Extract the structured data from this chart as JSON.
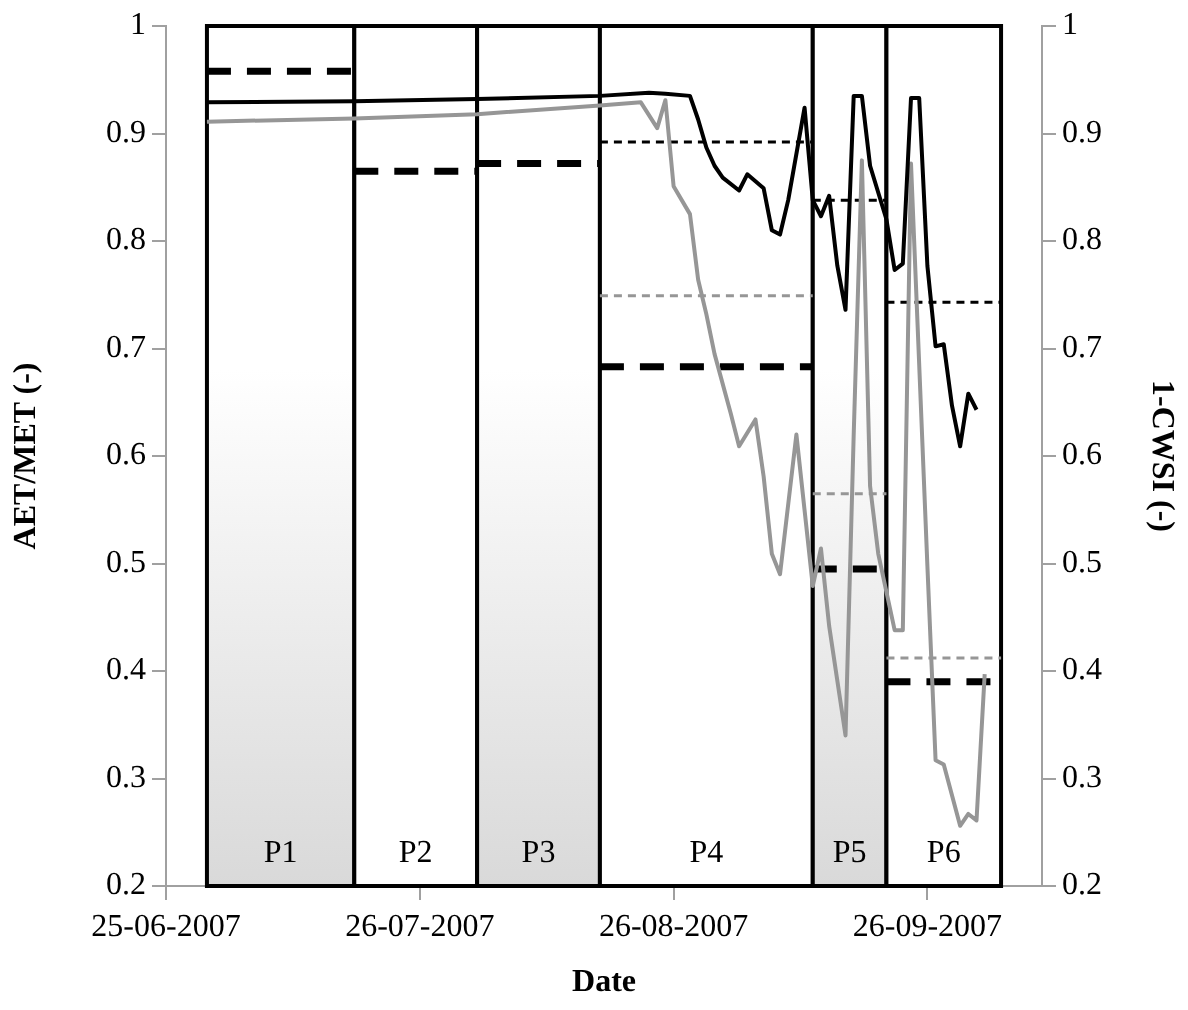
{
  "chart_data": {
    "type": "line",
    "xlabel": "Date",
    "ylabel": "AET/MET (-)",
    "y2label": "1-CWSI (-)",
    "xlim": [
      "2007-06-25",
      "2007-10-10"
    ],
    "xticks": [
      {
        "value": "2007-06-25",
        "label": "25-06-2007"
      },
      {
        "value": "2007-07-26",
        "label": "26-07-2007"
      },
      {
        "value": "2007-08-26",
        "label": "26-08-2007"
      },
      {
        "value": "2007-09-26",
        "label": "26-09-2007"
      }
    ],
    "ylim": [
      0.2,
      1
    ],
    "yticks": [
      0.2,
      0.3,
      0.4,
      0.5,
      0.6,
      0.7,
      0.8,
      0.9,
      1
    ],
    "y2lim": [
      0.2,
      1
    ],
    "y2ticks": [
      0.2,
      0.3,
      0.4,
      0.5,
      0.6,
      0.7,
      0.8,
      0.9,
      1
    ],
    "grid": false,
    "legend": false,
    "marker": "none",
    "bands": [
      {
        "axis": "x",
        "from": "2007-06-30",
        "to": "2007-07-18",
        "label": "P1",
        "color": "#d9d9d9"
      },
      {
        "axis": "x",
        "from": "2007-07-18",
        "to": "2007-08-02",
        "label": "P2",
        "color": "#ffffff"
      },
      {
        "axis": "x",
        "from": "2007-08-02",
        "to": "2007-08-17",
        "label": "P3",
        "color": "#d9d9d9"
      },
      {
        "axis": "x",
        "from": "2007-08-17",
        "to": "2007-09-12",
        "label": "P4",
        "color": "#ffffff"
      },
      {
        "axis": "x",
        "from": "2007-09-12",
        "to": "2007-09-21",
        "label": "P5",
        "color": "#d9d9d9"
      },
      {
        "axis": "x",
        "from": "2007-09-21",
        "to": "2007-10-05",
        "label": "P6",
        "color": "#ffffff"
      }
    ],
    "series": [
      {
        "color": "#000000",
        "line_style": "solid",
        "x": [
          "2007-06-30",
          "2007-07-18",
          "2007-08-02",
          "2007-08-17",
          "2007-08-23",
          "2007-08-25",
          "2007-08-28",
          "2007-08-29",
          "2007-08-30",
          "2007-08-31",
          "2007-09-01",
          "2007-09-03",
          "2007-09-04",
          "2007-09-06",
          "2007-09-07",
          "2007-09-08",
          "2007-09-09",
          "2007-09-11",
          "2007-09-12",
          "2007-09-13",
          "2007-09-14",
          "2007-09-15",
          "2007-09-16",
          "2007-09-17",
          "2007-09-18",
          "2007-09-19",
          "2007-09-21",
          "2007-09-22",
          "2007-09-23",
          "2007-09-24",
          "2007-09-25",
          "2007-09-26",
          "2007-09-27",
          "2007-09-28",
          "2007-09-29",
          "2007-09-30",
          "2007-10-01",
          "2007-10-02"
        ],
        "values": [
          0.929,
          0.93,
          0.932,
          0.935,
          0.938,
          0.937,
          0.935,
          0.913,
          0.887,
          0.87,
          0.859,
          0.847,
          0.862,
          0.849,
          0.81,
          0.806,
          0.838,
          0.924,
          0.838,
          0.823,
          0.842,
          0.777,
          0.736,
          0.935,
          0.935,
          0.87,
          0.82,
          0.773,
          0.779,
          0.933,
          0.933,
          0.777,
          0.702,
          0.704,
          0.647,
          0.609,
          0.658,
          0.643
        ]
      },
      {
        "color": "#969696",
        "line_style": "solid",
        "x": [
          "2007-06-30",
          "2007-07-18",
          "2007-08-02",
          "2007-08-17",
          "2007-08-22",
          "2007-08-24",
          "2007-08-25",
          "2007-08-26",
          "2007-08-28",
          "2007-08-29",
          "2007-08-30",
          "2007-08-31",
          "2007-09-02",
          "2007-09-03",
          "2007-09-05",
          "2007-09-06",
          "2007-09-07",
          "2007-09-08",
          "2007-09-10",
          "2007-09-12",
          "2007-09-13",
          "2007-09-14",
          "2007-09-16",
          "2007-09-17",
          "2007-09-18",
          "2007-09-19",
          "2007-09-20",
          "2007-09-22",
          "2007-09-23",
          "2007-09-24",
          "2007-09-26",
          "2007-09-27",
          "2007-09-28",
          "2007-09-30",
          "2007-10-01",
          "2007-10-02",
          "2007-10-03"
        ],
        "values": [
          0.911,
          0.914,
          0.918,
          0.926,
          0.929,
          0.905,
          0.931,
          0.851,
          0.825,
          0.764,
          0.732,
          0.695,
          0.639,
          0.609,
          0.634,
          0.581,
          0.509,
          0.49,
          0.62,
          0.479,
          0.514,
          0.442,
          0.34,
          0.62,
          0.875,
          0.572,
          0.509,
          0.438,
          0.438,
          0.872,
          0.498,
          0.317,
          0.313,
          0.256,
          0.267,
          0.261,
          0.397
        ]
      },
      {
        "color": "#000000",
        "line_style": "dashed",
        "x": [
          "2007-06-30",
          "2007-07-18"
        ],
        "values": [
          0.958,
          0.958
        ]
      },
      {
        "color": "#000000",
        "line_style": "dashed",
        "x": [
          "2007-07-18",
          "2007-08-02"
        ],
        "values": [
          0.865,
          0.865
        ]
      },
      {
        "color": "#000000",
        "line_style": "dashed",
        "x": [
          "2007-08-02",
          "2007-08-17"
        ],
        "values": [
          0.872,
          0.872
        ]
      },
      {
        "color": "#000000",
        "line_style": "dashed",
        "x": [
          "2007-08-17",
          "2007-09-12"
        ],
        "values": [
          0.683,
          0.683
        ]
      },
      {
        "color": "#000000",
        "line_style": "dashed",
        "x": [
          "2007-09-12",
          "2007-09-21"
        ],
        "values": [
          0.495,
          0.495
        ]
      },
      {
        "color": "#000000",
        "line_style": "dashed",
        "x": [
          "2007-09-21",
          "2007-10-05"
        ],
        "values": [
          0.39,
          0.39
        ]
      },
      {
        "color": "#000000",
        "line_style": "dotted",
        "x": [
          "2007-08-17",
          "2007-09-12"
        ],
        "values": [
          0.892,
          0.892
        ]
      },
      {
        "color": "#000000",
        "line_style": "dotted",
        "x": [
          "2007-09-12",
          "2007-09-21"
        ],
        "values": [
          0.838,
          0.838
        ]
      },
      {
        "color": "#000000",
        "line_style": "dotted",
        "x": [
          "2007-09-21",
          "2007-10-05"
        ],
        "values": [
          0.743,
          0.743
        ]
      },
      {
        "color": "#969696",
        "line_style": "dotted",
        "x": [
          "2007-08-17",
          "2007-09-12"
        ],
        "values": [
          0.749,
          0.749
        ]
      },
      {
        "color": "#969696",
        "line_style": "dotted",
        "x": [
          "2007-09-12",
          "2007-09-21"
        ],
        "values": [
          0.565,
          0.565
        ]
      },
      {
        "color": "#969696",
        "line_style": "dotted",
        "x": [
          "2007-09-21",
          "2007-10-05"
        ],
        "values": [
          0.412,
          0.412
        ]
      }
    ]
  }
}
